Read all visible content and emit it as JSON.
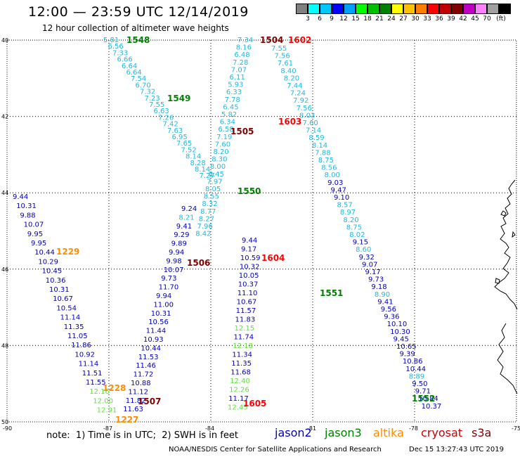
{
  "title": "12:00 — 23:59 UTC 12/14/2019",
  "subtitle": "12 hour collection of altimeter wave heights",
  "legend": {
    "unit": "(ft)",
    "colors": [
      "#808080",
      "#00ffff",
      "#00c8ff",
      "#0000ff",
      "#00a0ff",
      "#00ff00",
      "#00c000",
      "#008000",
      "#ffff00",
      "#ffc000",
      "#ff8000",
      "#ff0000",
      "#c00000",
      "#800000",
      "#c000c0",
      "#ff80ff",
      "#a0a0a0",
      "#000000"
    ],
    "labels": [
      "3",
      "6",
      "9",
      "12",
      "15",
      "18",
      "21",
      "24",
      "27",
      "30",
      "33",
      "36",
      "39",
      "42",
      "45",
      "70"
    ]
  },
  "axes": {
    "lat_labels": [
      "40",
      "42",
      "44",
      "46",
      "48",
      "50"
    ],
    "lon_labels": [
      "-90",
      "-87",
      "-84",
      "-81",
      "-78",
      "-75"
    ]
  },
  "passes": [
    {
      "id": "1548",
      "color": "#008000"
    },
    {
      "id": "1549",
      "color": "#008000"
    },
    {
      "id": "1550",
      "color": "#008000"
    },
    {
      "id": "1551",
      "color": "#008000"
    },
    {
      "id": "1552",
      "color": "#008000"
    },
    {
      "id": "1504",
      "color": "#800000"
    },
    {
      "id": "1505",
      "color": "#800000"
    },
    {
      "id": "1506",
      "color": "#800000"
    },
    {
      "id": "1507",
      "color": "#800000"
    },
    {
      "id": "1602",
      "color": "#ff0000"
    },
    {
      "id": "1603",
      "color": "#ff0000"
    },
    {
      "id": "1604",
      "color": "#ff0000"
    },
    {
      "id": "1605",
      "color": "#ff0000"
    },
    {
      "id": "1229",
      "color": "#ff8c00"
    },
    {
      "id": "1228",
      "color": "#ff8c00"
    },
    {
      "id": "1227",
      "color": "#ff8c00"
    }
  ],
  "tracks": {
    "t1548": [
      "5.81",
      "6.56",
      "7.33",
      "6.66",
      "6.64",
      "6.64",
      "7.54",
      "6.70",
      "7.32",
      "7.23",
      "7.55",
      "6.63",
      "7.26",
      "7.42",
      "7.63",
      "6.95",
      "7.65",
      "7.52",
      "8.14",
      "8.28",
      "8.14",
      "7.27"
    ],
    "t1549": [
      "7.34",
      "8.16",
      "6.48",
      "7.28",
      "7.07",
      "6.11",
      "5.93",
      "6.33",
      "7.78",
      "6.45",
      "5.82",
      "6.34",
      "6.58",
      "7.19",
      "7.60",
      "8.20",
      "8.30",
      "8.00",
      "8.45",
      "7.97",
      "8.05",
      "8.55",
      "8.32",
      "8.77",
      "8.27",
      "7.96",
      "8.42"
    ],
    "t1550": [
      "7.55",
      "7.56",
      "7.61",
      "8.40",
      "8.20",
      "7.44",
      "7.24",
      "7.92",
      "7.56",
      "8.03",
      "7.60",
      "7.14",
      "8.59",
      "8.14",
      "7.88",
      "8.75",
      "8.56",
      "8.00",
      "9.03",
      "9.47",
      "9.10",
      "8.57",
      "8.97",
      "8.20",
      "8.75",
      "8.02",
      "9.15",
      "8.60",
      "9.32",
      "9.07",
      "9.17",
      "9.73",
      "9.18",
      "8.90",
      "9.41",
      "9.56",
      "9.36",
      "10.10",
      "10.30",
      "9.45",
      "10.65",
      "9.39",
      "10.86",
      "10.44",
      "8.89",
      "9.50",
      "9.71",
      "10.84",
      "10.37"
    ],
    "t1506": [
      "9.24",
      "8.21",
      "9.41",
      "9.29",
      "9.89",
      "9.94",
      "9.98",
      "10.07",
      "9.73",
      "11.70",
      "9.94",
      "11.00",
      "10.31",
      "10.56",
      "11.44",
      "10.93",
      "10.44",
      "11.53",
      "11.46",
      "11.72",
      "10.88",
      "11.12",
      "11.82",
      "11.63"
    ],
    "t1229": [
      "9.44",
      "10.31",
      "9.88",
      "10.07",
      "9.95",
      "9.95",
      "10.44",
      "10.29",
      "10.45",
      "10.36",
      "10.31",
      "10.67",
      "10.54",
      "11.14",
      "11.35",
      "11.05",
      "11.86",
      "10.92",
      "11.14",
      "11.51",
      "11.55",
      "12.16",
      "12.00",
      "12.91"
    ],
    "t1605": [
      "9.44",
      "9.17",
      "10.59",
      "10.32",
      "10.05",
      "10.37",
      "11.10",
      "10.67",
      "11.57",
      "11.83",
      "12.15",
      "11.74",
      "12.18",
      "11.34",
      "11.35",
      "11.68",
      "12.40",
      "12.26",
      "11.17",
      "12.45"
    ]
  },
  "footer": {
    "note": "note:  1) Time is in UTC;  2) SWH is in feet",
    "missions": [
      {
        "name": "jason2",
        "color": "#0000cc"
      },
      {
        "name": "jason3",
        "color": "#008000"
      },
      {
        "name": "altika",
        "color": "#ff8c00"
      },
      {
        "name": "cryosat",
        "color": "#cc0000"
      },
      {
        "name": "s3a",
        "color": "#800000"
      }
    ],
    "credit": "NOAA/NESDIS Center for Satellite Applications and Research",
    "timestamp": "Dec 15 13:27:43 UTC 2019"
  }
}
